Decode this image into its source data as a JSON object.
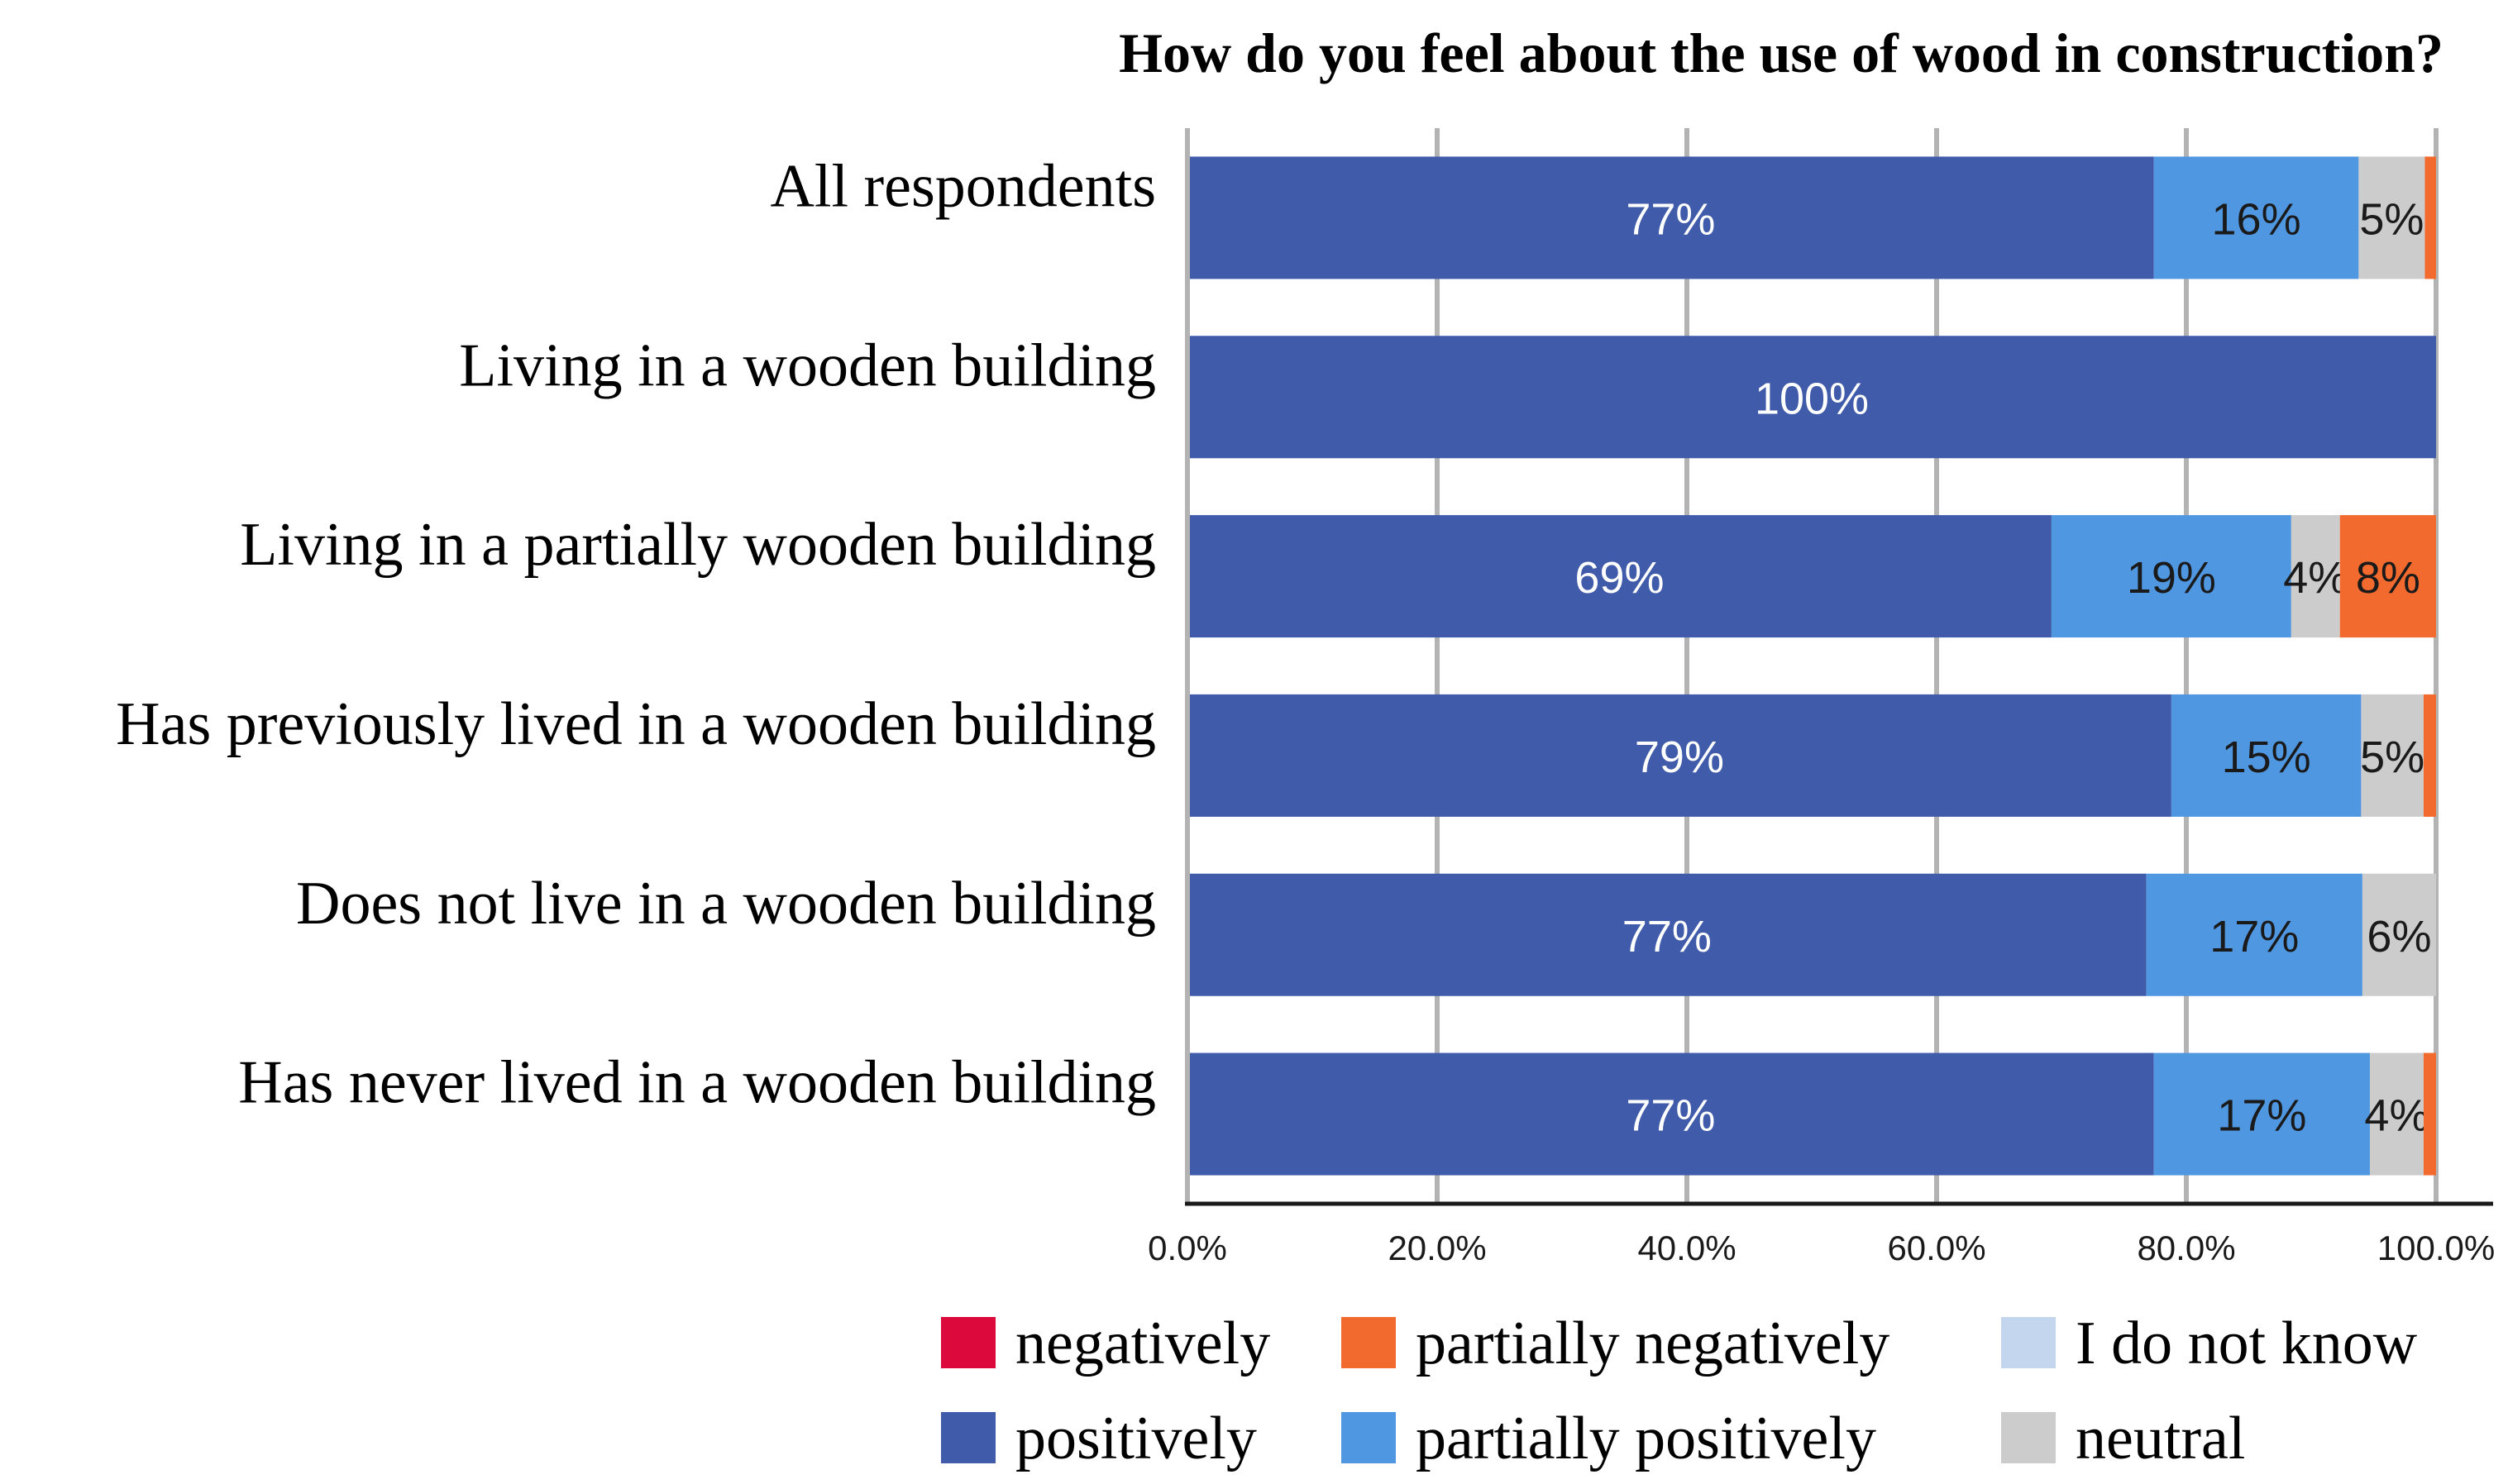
{
  "chart_data": {
    "type": "bar",
    "orientation": "horizontal",
    "stacked": true,
    "title": "How do you feel about the use of wood in construction?",
    "xlabel": "",
    "ylabel": "",
    "xlim": [
      0,
      100
    ],
    "x_ticks": [
      "0.0%",
      "20.0%",
      "40.0%",
      "60.0%",
      "80.0%",
      "100.0%"
    ],
    "grid": "vertical",
    "legend_position": "bottom",
    "categories": [
      "All respondents",
      "Living in a wooden building",
      "Living in a partially wooden building",
      "Has previously lived in a wooden building",
      "Does not live in a wooden building",
      "Has never lived in a wooden building"
    ],
    "series": [
      {
        "name": "positively",
        "color": "#3F5BA9",
        "values": [
          77.4,
          100,
          69.2,
          78.8,
          76.8,
          77.4
        ],
        "labels": [
          "77%",
          "100%",
          "69%",
          "79%",
          "77%",
          "77%"
        ],
        "label_color": "#ffffff"
      },
      {
        "name": "partially positively",
        "color": "#5097E2",
        "values": [
          16.4,
          0,
          19.2,
          15.2,
          17.3,
          17.3
        ],
        "labels": [
          "16%",
          "",
          "19%",
          "15%",
          "17%",
          "17%"
        ],
        "label_color": "#1a1a1a"
      },
      {
        "name": "neutral",
        "color": "#CCCCCC",
        "values": [
          5.3,
          0,
          3.9,
          5.0,
          5.9,
          4.3
        ],
        "labels": [
          "5%",
          "",
          "4%",
          "5%",
          "6%",
          "4%"
        ],
        "label_color": "#1a1a1a"
      },
      {
        "name": "I do not know",
        "color": "#C3D6EE",
        "values": [
          0,
          0,
          0,
          0,
          0,
          0
        ],
        "labels": [
          "",
          "",
          "",
          "",
          "",
          ""
        ],
        "label_color": "#1a1a1a"
      },
      {
        "name": "partially negatively",
        "color": "#F26A2E",
        "values": [
          0.9,
          0,
          7.7,
          1.0,
          0,
          1.0
        ],
        "labels": [
          "",
          "",
          "8%",
          "",
          "",
          ""
        ],
        "label_color": "#1a1a1a"
      },
      {
        "name": "negatively",
        "color": "#DC0A3C",
        "values": [
          0,
          0,
          0,
          0,
          0,
          0
        ],
        "labels": [
          "",
          "",
          "",
          "",
          "",
          ""
        ],
        "label_color": "#ffffff"
      }
    ],
    "legend": [
      {
        "name": "negatively",
        "color": "#DC0A3C"
      },
      {
        "name": "partially negatively",
        "color": "#F26A2E"
      },
      {
        "name": "I do not know",
        "color": "#C3D6EE"
      },
      {
        "name": "positively",
        "color": "#3F5BA9"
      },
      {
        "name": "partially positively",
        "color": "#5097E2"
      },
      {
        "name": "neutral",
        "color": "#CCCCCC"
      }
    ]
  }
}
